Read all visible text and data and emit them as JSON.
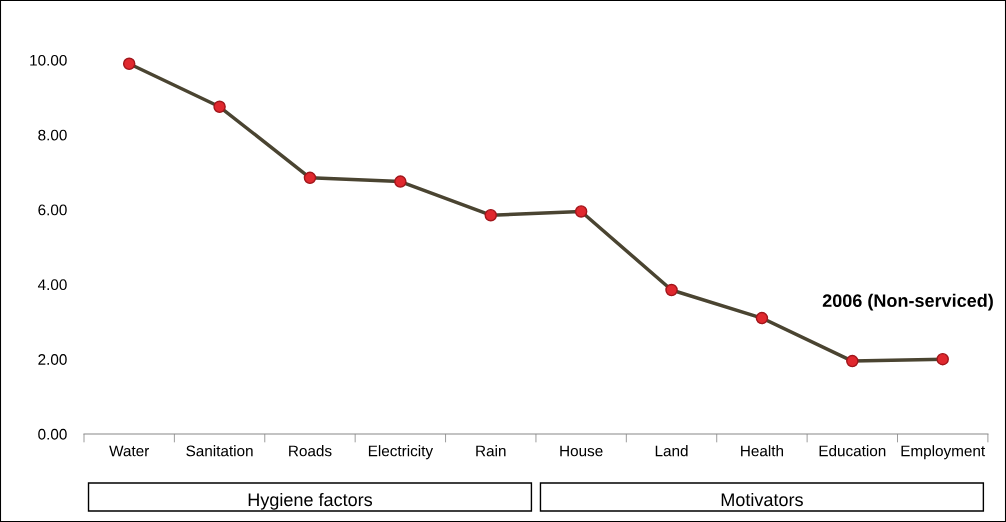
{
  "chart_data": {
    "type": "line",
    "categories": [
      "Water",
      "Sanitation",
      "Roads",
      "Electricity",
      "Rain",
      "House",
      "Land",
      "Health",
      "Education",
      "Employment"
    ],
    "series": [
      {
        "name": "2006 (Non-serviced)",
        "color": "#4a4431",
        "colors": [
          "#e0282e",
          "#e0282e",
          "#e0282e",
          "#e0282e",
          "#e0282e",
          "#e0282e",
          "#e0282e",
          "#e0282e",
          "#e0282e",
          "#e0282e"
        ],
        "values": [
          9.9,
          8.75,
          6.85,
          6.75,
          5.85,
          5.95,
          3.85,
          3.1,
          1.95,
          2.0
        ]
      }
    ],
    "ylim": [
      0,
      10
    ],
    "yticks": [
      {
        "value": 0,
        "label": "0.00"
      },
      {
        "value": 2,
        "label": "2.00"
      },
      {
        "value": 4,
        "label": "4.00"
      },
      {
        "value": 6,
        "label": "6.00"
      },
      {
        "value": 8,
        "label": "8.00"
      },
      {
        "value": 10,
        "label": "10.00"
      }
    ],
    "marker": "circle",
    "line_style": "solid",
    "grid": false,
    "legend": false,
    "annotations": [
      "Hygiene factors",
      "Motivators"
    ]
  }
}
